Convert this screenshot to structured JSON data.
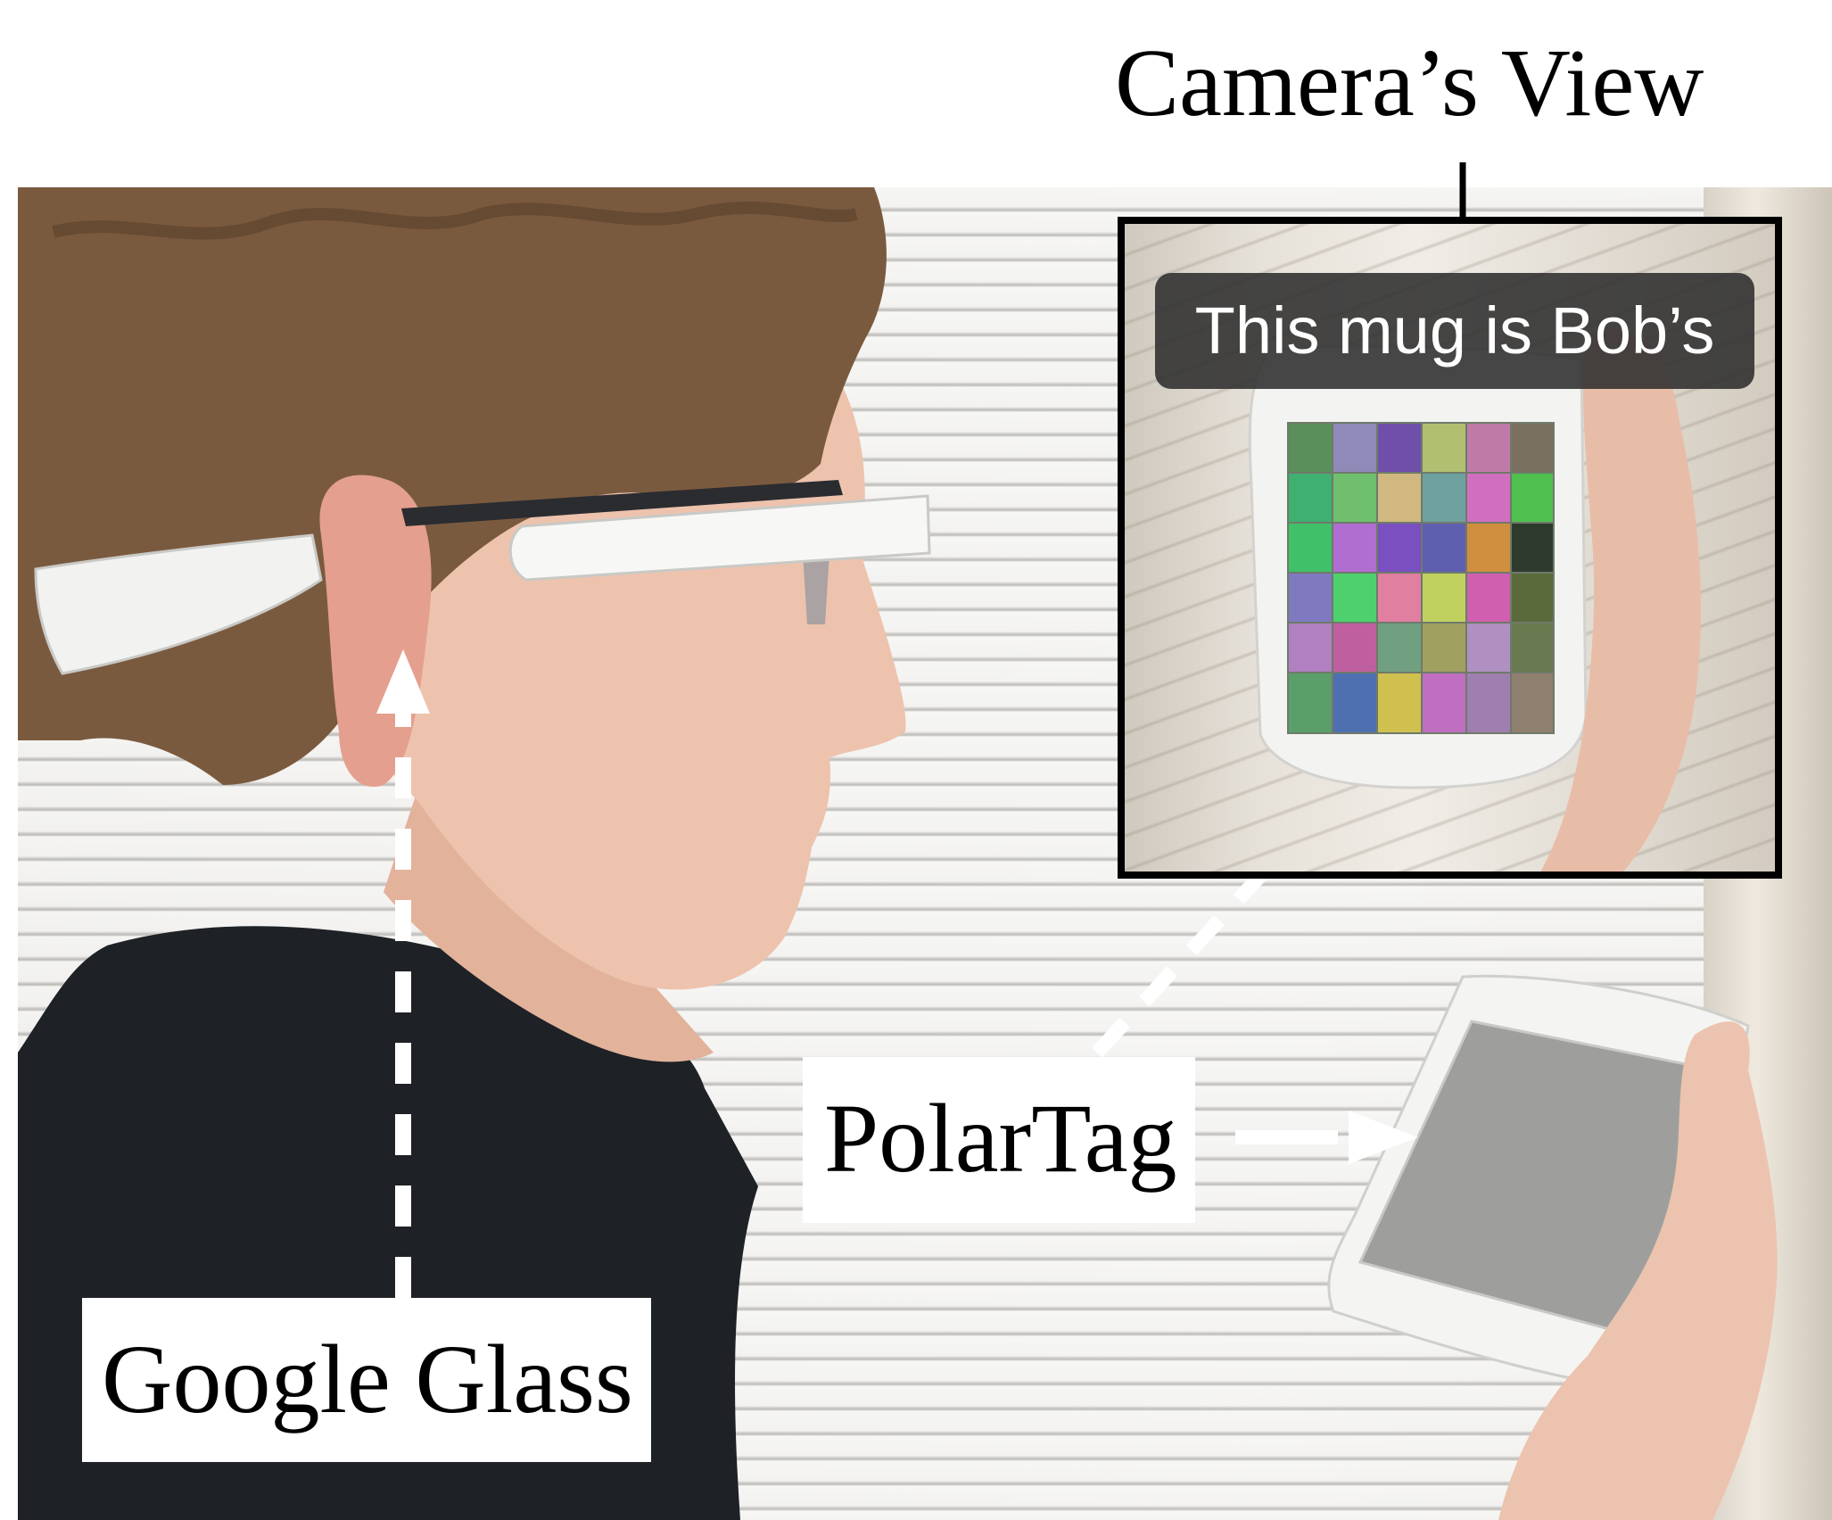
{
  "labels": {
    "camera_view": "Camera’s View",
    "polartag": "PolarTag",
    "google_glass": "Google Glass"
  },
  "camera_view": {
    "overlay_text": "This mug is Bob’s"
  },
  "colors": {
    "label_background": "#ffffff",
    "caption_pill": "#2d2d2d",
    "frame": "#000000"
  }
}
